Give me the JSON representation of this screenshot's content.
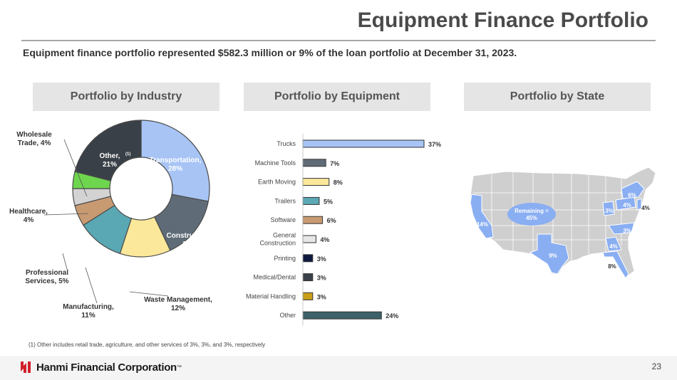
{
  "header": {
    "title": "Equipment Finance Portfolio",
    "subtitle": "Equipment finance portfolio represented $582.3 million or 9% of the loan portfolio at December 31, 2023."
  },
  "panels": {
    "industry": "Portfolio by Industry",
    "equipment": "Portfolio by Equipment",
    "state": "Portfolio by State"
  },
  "chart_data": [
    {
      "type": "pie",
      "subtype": "donut",
      "title": "Portfolio by Industry",
      "categories": [
        "Transportation",
        "Construction",
        "Waste Management",
        "Manufacturing",
        "Professional Services",
        "Healthcare",
        "Wholesale Trade",
        "Other"
      ],
      "values": [
        28,
        15,
        12,
        11,
        5,
        4,
        4,
        21
      ],
      "colors": [
        "#a7c4f5",
        "#5f6c78",
        "#fce89a",
        "#5aa8b4",
        "#c89a72",
        "#d3d3d3",
        "#6ed64e",
        "#3a4047"
      ],
      "labels": [
        {
          "line1": "Transportation,",
          "line2": "28%"
        },
        {
          "line1": "Construction,",
          "line2": "15%"
        },
        {
          "line1": "Waste Management,",
          "line2": "12%"
        },
        {
          "line1": "Manufacturing,",
          "line2": "11%"
        },
        {
          "line1": "Professional",
          "line2": "Services, 5%"
        },
        {
          "line1": "Healthcare,",
          "line2": "4%"
        },
        {
          "line1": "Wholesale",
          "line2": "Trade, 4%"
        },
        {
          "line1": "Other,",
          "sup": "(1)",
          "line2": "21%"
        }
      ]
    },
    {
      "type": "bar",
      "orientation": "horizontal",
      "title": "Portfolio by Equipment",
      "categories": [
        "Trucks",
        "Machine Tools",
        "Earth Moving",
        "Trailers",
        "Software",
        "General Construction",
        "Printing",
        "Medical/Dental",
        "Material Handling",
        "Other"
      ],
      "category_lines": [
        [
          "Trucks"
        ],
        [
          "Machine Tools"
        ],
        [
          "Earth Moving"
        ],
        [
          "Trailers"
        ],
        [
          "Software"
        ],
        [
          "General",
          "Construction"
        ],
        [
          "Printing"
        ],
        [
          "Medical/Dental"
        ],
        [
          "Material Handling"
        ],
        [
          "Other"
        ]
      ],
      "values": [
        37,
        7,
        8,
        5,
        6,
        4,
        3,
        3,
        3,
        24
      ],
      "value_labels": [
        "37%",
        "7%",
        "8%",
        "5%",
        "6%",
        "4%",
        "3%",
        "3%",
        "3%",
        "24%"
      ],
      "colors": [
        "#a7c4f5",
        "#5f6c78",
        "#fce89a",
        "#5aa8b4",
        "#c89a72",
        "#e6e6e6",
        "#0f1a40",
        "#3a4047",
        "#c9a018",
        "#3d6168"
      ]
    }
  ],
  "map": {
    "highlight_color": "#8aaef2",
    "base_color": "#cfcfcf",
    "labels": [
      {
        "name": "remaining",
        "line1": "Remaining =",
        "line2": "45%"
      },
      {
        "name": "california",
        "text": "14%"
      },
      {
        "name": "texas",
        "text": "9%"
      },
      {
        "name": "florida",
        "text": "8%"
      },
      {
        "name": "georgia",
        "text": "4%"
      },
      {
        "name": "north-carolina",
        "text": "3%"
      },
      {
        "name": "ohio",
        "text": "3%"
      },
      {
        "name": "pennsylvania",
        "text": "4%"
      },
      {
        "name": "new-york",
        "text": "6%"
      },
      {
        "name": "new-jersey",
        "text": "4%"
      }
    ]
  },
  "footnote": "(1)    Other includes retail trade, agriculture, and other services of 3%, 3%, and 3%, respectively",
  "footer": {
    "company": "Hanmi Financial Corporation",
    "tm": "™",
    "page": "23"
  },
  "brand": {
    "logo_color": "#d11f2a"
  }
}
